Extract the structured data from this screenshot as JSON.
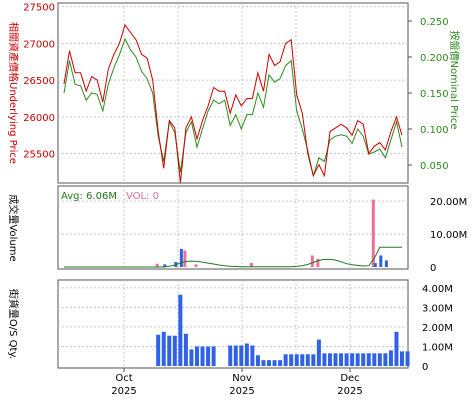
{
  "chart_data": {
    "type": "line",
    "colors": {
      "underlying": "#cc0000",
      "nominal": "#2e8b1e",
      "volume_up": "#2962d9",
      "volume_down": "#ee6f9b",
      "avg_line": "#1f7a1f",
      "qty_bar": "#2f62e6",
      "grid": "#c8c8c8"
    },
    "x_axis": {
      "months": [
        {
          "label": "Oct",
          "year": "2025"
        },
        {
          "label": "Nov",
          "year": "2025"
        },
        {
          "label": "Dec",
          "year": "2025"
        }
      ]
    },
    "price_panel": {
      "left_axis_label": "相關資產價格Underlying Price",
      "right_axis_label": "按盤價Nominal Price",
      "left_ticks": [
        "27500",
        "27000",
        "26500",
        "26000",
        "25500"
      ],
      "right_ticks": [
        "0.250",
        "0.200",
        "0.150",
        "0.100",
        "0.050"
      ],
      "ylim_left": [
        25100,
        27550
      ],
      "ylim_right": [
        0.025,
        0.275
      ],
      "underlying": [
        26450,
        26900,
        26600,
        26600,
        26350,
        26550,
        26500,
        26200,
        26650,
        26850,
        27000,
        27250,
        27150,
        27050,
        26850,
        26800,
        26500,
        25800,
        25300,
        25950,
        25850,
        25100,
        25850,
        26000,
        25700,
        25950,
        26150,
        26400,
        26350,
        26350,
        26050,
        26300,
        26150,
        26250,
        26250,
        26600,
        26350,
        26850,
        26700,
        26750,
        27000,
        27050,
        26300,
        26050,
        25500,
        25200,
        25350,
        25200,
        25800,
        25850,
        25900,
        25850,
        25750,
        25950,
        25900,
        25500,
        25600,
        25650,
        25550,
        25800,
        26000,
        25750
      ],
      "nominal": [
        0.15,
        0.195,
        0.162,
        0.16,
        0.14,
        0.15,
        0.148,
        0.125,
        0.162,
        0.185,
        0.203,
        0.225,
        0.21,
        0.2,
        0.18,
        0.17,
        0.15,
        0.09,
        0.055,
        0.11,
        0.095,
        0.04,
        0.095,
        0.11,
        0.075,
        0.1,
        0.125,
        0.14,
        0.135,
        0.14,
        0.105,
        0.12,
        0.1,
        0.12,
        0.12,
        0.15,
        0.13,
        0.175,
        0.165,
        0.17,
        0.188,
        0.195,
        0.125,
        0.1,
        0.07,
        0.035,
        0.06,
        0.055,
        0.085,
        0.09,
        0.092,
        0.09,
        0.08,
        0.1,
        0.09,
        0.065,
        0.068,
        0.072,
        0.06,
        0.085,
        0.11,
        0.075
      ]
    },
    "volume_panel": {
      "label": "成交量Volume",
      "avg_text": "Avg: 6.06M",
      "vol_text": "VOL: 0",
      "ticks": [
        "20.00M",
        "10.00M",
        "0"
      ],
      "ylim": [
        0,
        24000000
      ],
      "up_bars": [
        {
          "i": 18,
          "v": 800000
        },
        {
          "i": 20,
          "v": 1500000
        },
        {
          "i": 21,
          "v": 5500000
        },
        {
          "i": 56,
          "v": 1200000
        },
        {
          "i": 57,
          "v": 3500000
        },
        {
          "i": 58,
          "v": 2000000
        }
      ],
      "down_bars": [
        {
          "i": 17,
          "v": 1000000
        },
        {
          "i": 22,
          "v": 5000000
        },
        {
          "i": 24,
          "v": 800000
        },
        {
          "i": 34,
          "v": 1200000
        },
        {
          "i": 45,
          "v": 3500000
        },
        {
          "i": 46,
          "v": 2500000
        },
        {
          "i": 56,
          "v": 20500000
        }
      ],
      "avg_line": [
        0,
        0,
        0,
        0,
        0,
        0,
        0,
        0,
        0,
        0,
        0,
        0,
        0,
        0,
        0,
        0,
        0,
        0,
        0,
        200000,
        600000,
        1200000,
        1700000,
        1800000,
        1700000,
        1500000,
        1200000,
        900000,
        600000,
        400000,
        250000,
        150000,
        100000,
        100000,
        100000,
        100000,
        100000,
        100000,
        100000,
        100000,
        100000,
        100000,
        200000,
        400000,
        800000,
        1400000,
        2000000,
        2300000,
        2300000,
        2100000,
        1600000,
        1000000,
        700000,
        500000,
        300000,
        400000,
        2600000,
        6000000,
        6000000,
        6000000,
        6000000,
        6000000
      ]
    },
    "qty_panel": {
      "label": "街貨量O/S Qty.",
      "ticks": [
        "4.00M",
        "3.00M",
        "2.00M",
        "1.00M",
        "0"
      ],
      "ylim": [
        0,
        4300000
      ],
      "bars": [
        {
          "i": 17,
          "v": 1600000
        },
        {
          "i": 18,
          "v": 1750000
        },
        {
          "i": 19,
          "v": 1550000
        },
        {
          "i": 20,
          "v": 1550000
        },
        {
          "i": 21,
          "v": 3650000
        },
        {
          "i": 22,
          "v": 1650000
        },
        {
          "i": 23,
          "v": 850000
        },
        {
          "i": 24,
          "v": 1000000
        },
        {
          "i": 25,
          "v": 1000000
        },
        {
          "i": 26,
          "v": 1000000
        },
        {
          "i": 27,
          "v": 1000000
        },
        {
          "i": 30,
          "v": 1050000
        },
        {
          "i": 31,
          "v": 1050000
        },
        {
          "i": 32,
          "v": 1050000
        },
        {
          "i": 33,
          "v": 1150000
        },
        {
          "i": 34,
          "v": 1050000
        },
        {
          "i": 35,
          "v": 550000
        },
        {
          "i": 36,
          "v": 300000
        },
        {
          "i": 37,
          "v": 300000
        },
        {
          "i": 38,
          "v": 300000
        },
        {
          "i": 39,
          "v": 300000
        },
        {
          "i": 40,
          "v": 600000
        },
        {
          "i": 41,
          "v": 600000
        },
        {
          "i": 42,
          "v": 600000
        },
        {
          "i": 43,
          "v": 600000
        },
        {
          "i": 44,
          "v": 600000
        },
        {
          "i": 45,
          "v": 600000
        },
        {
          "i": 46,
          "v": 1350000
        },
        {
          "i": 47,
          "v": 650000
        },
        {
          "i": 48,
          "v": 650000
        },
        {
          "i": 49,
          "v": 650000
        },
        {
          "i": 50,
          "v": 650000
        },
        {
          "i": 51,
          "v": 650000
        },
        {
          "i": 52,
          "v": 650000
        },
        {
          "i": 53,
          "v": 650000
        },
        {
          "i": 54,
          "v": 650000
        },
        {
          "i": 55,
          "v": 650000
        },
        {
          "i": 56,
          "v": 650000
        },
        {
          "i": 57,
          "v": 650000
        },
        {
          "i": 58,
          "v": 650000
        },
        {
          "i": 59,
          "v": 800000
        },
        {
          "i": 60,
          "v": 1750000
        },
        {
          "i": 61,
          "v": 750000
        },
        {
          "i": 62,
          "v": 750000
        }
      ]
    }
  }
}
